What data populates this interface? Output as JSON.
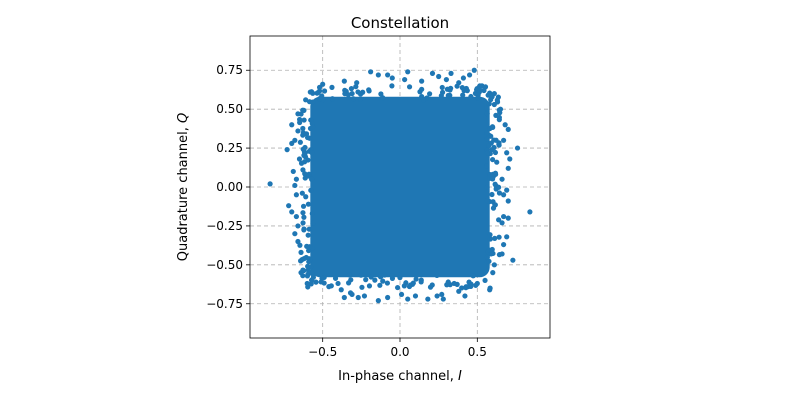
{
  "chart_data": {
    "type": "scatter",
    "title": "Constellation",
    "xlabel_text": "In-phase channel, ",
    "xlabel_symbol": "I",
    "ylabel_text": "Quadrature channel, ",
    "ylabel_symbol": "Q",
    "xlim": [
      -0.97,
      0.97
    ],
    "ylim": [
      -0.97,
      0.97
    ],
    "xticks": [
      -0.5,
      0.0,
      0.5
    ],
    "xtick_labels": [
      "−0.5",
      "0.0",
      "0.5"
    ],
    "yticks": [
      0.75,
      0.5,
      0.25,
      0.0,
      -0.25,
      -0.5,
      -0.75
    ],
    "ytick_labels": [
      "0.75",
      "0.50",
      "0.25",
      "0.00",
      "−0.25",
      "−0.50",
      "−0.75"
    ],
    "grid": true,
    "marker_color": "#1f77b4",
    "core_region": {
      "x": [
        -0.58,
        0.58
      ],
      "y": [
        -0.58,
        0.58
      ]
    },
    "points": [
      [
        0.48,
        0.75
      ],
      [
        -0.19,
        0.74
      ],
      [
        0.33,
        0.73
      ],
      [
        0.21,
        0.73
      ],
      [
        -0.14,
        0.72
      ],
      [
        0.45,
        0.72
      ],
      [
        -0.05,
        0.7
      ],
      [
        0.25,
        0.71
      ],
      [
        0.41,
        0.7
      ],
      [
        0.03,
        0.69
      ],
      [
        -0.36,
        0.68
      ],
      [
        0.14,
        0.68
      ],
      [
        -0.28,
        0.67
      ],
      [
        0.38,
        0.67
      ],
      [
        -0.5,
        0.66
      ],
      [
        0.53,
        0.65
      ],
      [
        -0.44,
        0.64
      ],
      [
        0.52,
        0.62
      ],
      [
        -0.58,
        0.61
      ],
      [
        0.57,
        0.59
      ],
      [
        -0.61,
        0.56
      ],
      [
        0.61,
        0.53
      ],
      [
        -0.66,
        0.47
      ],
      [
        0.65,
        0.5
      ],
      [
        -0.62,
        0.43
      ],
      [
        0.68,
        0.4
      ],
      [
        -0.66,
        0.36
      ],
      [
        0.7,
        0.37
      ],
      [
        -0.68,
        0.3
      ],
      [
        0.67,
        0.3
      ],
      [
        -0.7,
        0.28
      ],
      [
        -0.73,
        0.24
      ],
      [
        0.76,
        0.25
      ],
      [
        0.69,
        0.22
      ],
      [
        -0.65,
        0.18
      ],
      [
        0.71,
        0.18
      ],
      [
        -0.69,
        0.1
      ],
      [
        0.7,
        0.12
      ],
      [
        -0.67,
        0.05
      ],
      [
        0.66,
        0.05
      ],
      [
        -0.84,
        0.02
      ],
      [
        -0.68,
        0.01
      ],
      [
        0.69,
        -0.02
      ],
      [
        -0.67,
        -0.05
      ],
      [
        0.67,
        -0.05
      ],
      [
        -0.72,
        -0.12
      ],
      [
        0.7,
        -0.09
      ],
      [
        -0.7,
        -0.16
      ],
      [
        0.84,
        -0.16
      ],
      [
        -0.67,
        -0.19
      ],
      [
        0.67,
        -0.19
      ],
      [
        0.66,
        -0.23
      ],
      [
        -0.66,
        -0.25
      ],
      [
        -0.68,
        -0.3
      ],
      [
        0.69,
        -0.32
      ],
      [
        -0.66,
        -0.35
      ],
      [
        0.67,
        -0.37
      ],
      [
        -0.64,
        -0.42
      ],
      [
        0.66,
        -0.43
      ],
      [
        0.73,
        -0.47
      ],
      [
        -0.59,
        -0.48
      ],
      [
        0.61,
        -0.5
      ],
      [
        -0.64,
        -0.55
      ],
      [
        0.6,
        -0.55
      ],
      [
        -0.56,
        -0.58
      ],
      [
        0.55,
        -0.6
      ],
      [
        -0.51,
        -0.61
      ],
      [
        0.5,
        -0.62
      ],
      [
        -0.46,
        -0.64
      ],
      [
        0.44,
        -0.64
      ],
      [
        -0.38,
        -0.66
      ],
      [
        0.38,
        -0.67
      ],
      [
        -0.32,
        -0.68
      ],
      [
        0.27,
        -0.69
      ],
      [
        -0.23,
        -0.7
      ],
      [
        0.24,
        -0.7
      ],
      [
        -0.08,
        -0.71
      ],
      [
        0.1,
        -0.7
      ],
      [
        0.18,
        -0.72
      ],
      [
        -0.36,
        -0.71
      ],
      [
        -0.14,
        -0.73
      ],
      [
        0.01,
        -0.69
      ],
      [
        0.05,
        -0.72
      ],
      [
        0.28,
        -0.72
      ],
      [
        0.42,
        -0.7
      ],
      [
        -0.27,
        -0.71
      ],
      [
        0.61,
        0.6
      ],
      [
        -0.6,
        -0.62
      ],
      [
        0.58,
        -0.66
      ],
      [
        -0.52,
        0.64
      ],
      [
        0.7,
        -0.2
      ],
      [
        -0.7,
        0.4
      ],
      [
        0.05,
        0.74
      ],
      [
        -0.08,
        0.72
      ],
      [
        0.62,
        0.46
      ],
      [
        -0.62,
        -0.46
      ],
      [
        0.3,
        0.69
      ],
      [
        -0.31,
        -0.69
      ]
    ]
  }
}
